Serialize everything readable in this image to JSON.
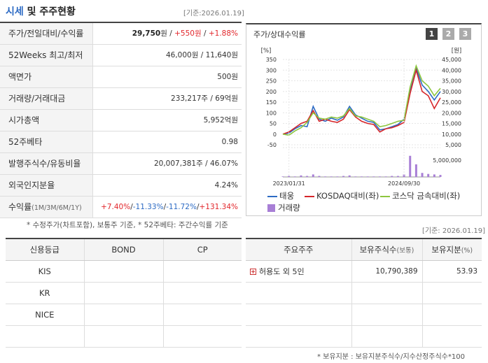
{
  "header": {
    "title_accent": "시세",
    "title_rest": " 및 주주현황",
    "date": "[기준:2026.01.19]"
  },
  "info": [
    {
      "label": "주가/전일대비/수익률",
      "price": "29,750",
      "price_unit": "원",
      "sep1": " / ",
      "change": "+550원",
      "sep2": " / ",
      "rate": "+1.88%"
    },
    {
      "label": "52Weeks 최고/최저",
      "value": "46,000원 / 11,640원"
    },
    {
      "label": "액면가",
      "value": "500원"
    },
    {
      "label": "거래량/거래대금",
      "value": "233,217주 / 69억원"
    },
    {
      "label": "시가총액",
      "value": "5,952억원"
    },
    {
      "label": "52주베타",
      "value": "0.98"
    },
    {
      "label": "발행주식수/유동비율",
      "value": "20,007,381주 / 46.07%"
    },
    {
      "label": "외국인지분율",
      "value": "4.24%"
    },
    {
      "label": "수익률",
      "label_small": "(1M/3M/6M/1Y)",
      "r1": "+7.40%",
      "r2": "-11.33%",
      "r3": "-11.72%",
      "r4": "+131.34%",
      "sep": "/"
    }
  ],
  "note1": "* 수정주가(차트포함), 보통주 기준, * 52주베타: 주간수익률 기준",
  "chart_panel": {
    "title": "주가/상대수익률",
    "buttons": [
      "1",
      "2",
      "3"
    ]
  },
  "chart_data": {
    "type": "line",
    "left_unit": "[%]",
    "right_unit": "[원]",
    "left_ticks": [
      350,
      300,
      250,
      200,
      150,
      100,
      50,
      0,
      -50
    ],
    "right_ticks": [
      45000,
      40000,
      35000,
      30000,
      25000,
      20000,
      15000,
      10000,
      5000
    ],
    "volume_tick": "5,000,000",
    "x_ticks": [
      "2023/01/31",
      "2024/09/30"
    ],
    "x_index_ticks": [
      1,
      20
    ],
    "ylim_left": [
      -50,
      350
    ],
    "ylim_right": [
      5000,
      45000
    ],
    "series": [
      {
        "name": "태웅",
        "color": "#2d6bc4",
        "values": [
          0,
          5,
          25,
          40,
          35,
          130,
          70,
          60,
          75,
          65,
          80,
          130,
          90,
          75,
          60,
          55,
          20,
          25,
          35,
          45,
          70,
          200,
          310,
          230,
          200,
          160,
          200
        ]
      },
      {
        "name": "KOSDAQ대비(좌)",
        "color": "#d6262a",
        "values": [
          0,
          10,
          30,
          50,
          60,
          110,
          60,
          70,
          60,
          55,
          70,
          115,
          80,
          60,
          50,
          45,
          10,
          25,
          30,
          40,
          55,
          190,
          300,
          200,
          180,
          120,
          170
        ]
      },
      {
        "name": "코스닥 금속대비(좌)",
        "color": "#8dc63f",
        "values": [
          0,
          -5,
          15,
          30,
          55,
          100,
          75,
          70,
          80,
          75,
          85,
          120,
          85,
          80,
          70,
          60,
          35,
          40,
          50,
          60,
          65,
          220,
          320,
          250,
          225,
          180,
          215
        ]
      }
    ],
    "volume": {
      "name": "거래량",
      "color": "#a87fd6",
      "values": [
        0.1,
        0.2,
        0.1,
        0.3,
        0.2,
        0.5,
        0.2,
        0.1,
        0.1,
        0.1,
        0.2,
        0.3,
        0.1,
        0.1,
        0.1,
        0.1,
        0.1,
        0.1,
        0.2,
        0.2,
        0.5,
        4.2,
        2.5,
        0.8,
        0.6,
        0.5,
        0.4
      ]
    }
  },
  "legend": {
    "s1": "태웅",
    "s2": "KOSDAQ대비(좌)",
    "s3": "코스닥 금속대비(좌)",
    "vol": "거래량"
  },
  "date2": "[기준: 2026.01.19]",
  "credit": {
    "headers": [
      "신용등급",
      "BOND",
      "CP"
    ],
    "rows": [
      [
        "KIS",
        "",
        ""
      ],
      [
        "KR",
        "",
        ""
      ],
      [
        "NICE",
        "",
        ""
      ],
      [
        "",
        "",
        ""
      ]
    ]
  },
  "holders": {
    "h1": "주요주주",
    "h2": "보유주식수",
    "h2_small": "(보통)",
    "h3": "보유지분",
    "h3_small": "(%)",
    "rows": [
      {
        "name": "허용도 외 5인",
        "shares": "10,790,389",
        "pct": "53.93"
      }
    ]
  },
  "note2": "* 보유지분 : 보유지분주식수/지수산정주식수*100"
}
